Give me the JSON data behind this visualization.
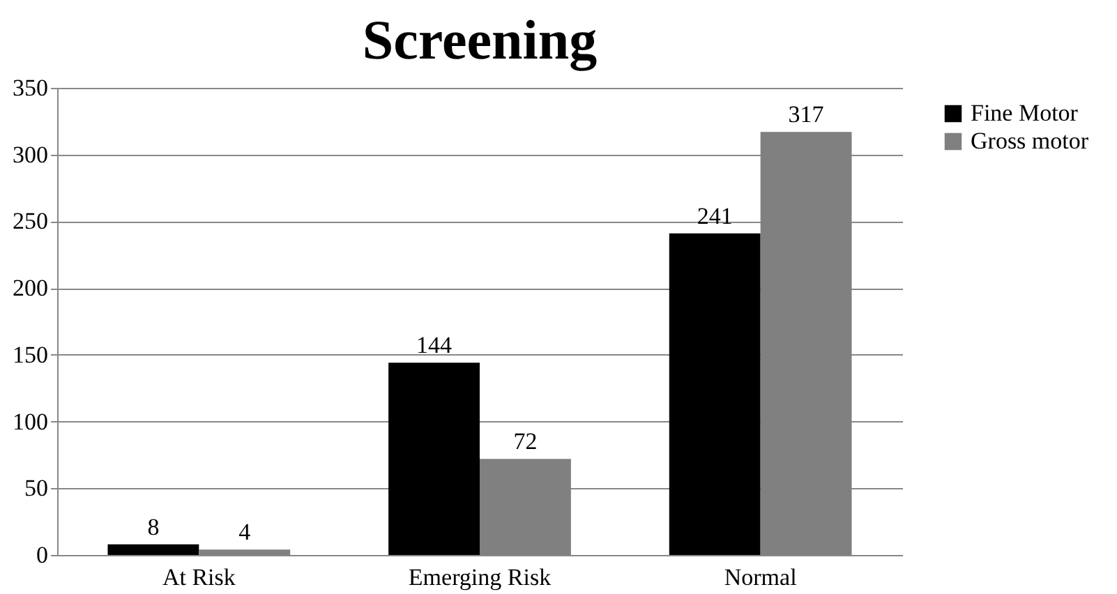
{
  "chart_data": {
    "type": "bar",
    "title": "Screening",
    "categories": [
      "At Risk",
      "Emerging Risk",
      "Normal"
    ],
    "series": [
      {
        "name": "Fine Motor",
        "color": "#000000",
        "values": [
          8,
          144,
          241
        ]
      },
      {
        "name": "Gross motor",
        "color": "#808080",
        "values": [
          4,
          72,
          317
        ]
      }
    ],
    "ylim": [
      0,
      350
    ],
    "yticks": [
      0,
      50,
      100,
      150,
      200,
      250,
      300,
      350
    ],
    "grid": "y",
    "legend": "right",
    "data_labels": true
  }
}
